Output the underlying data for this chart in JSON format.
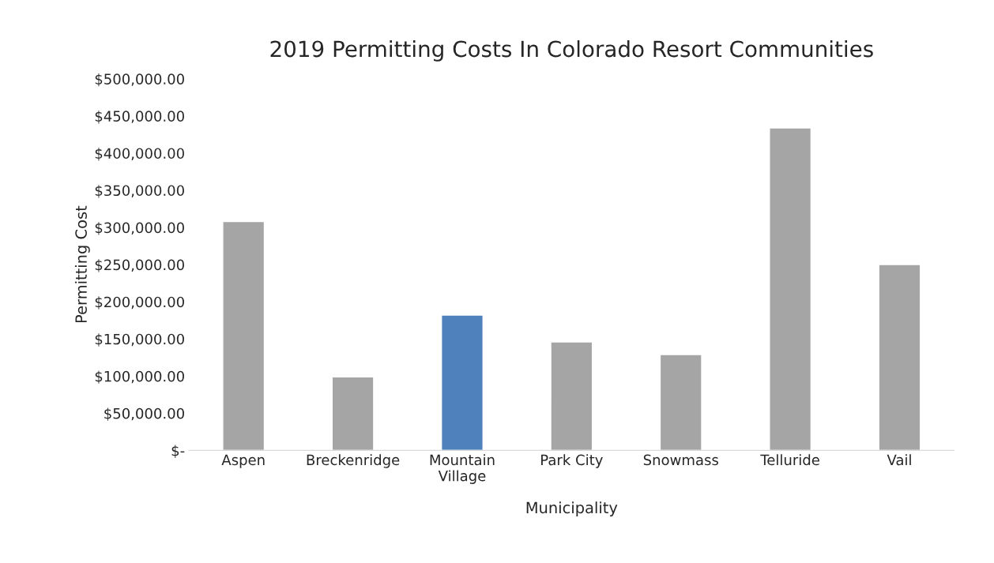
{
  "chart_data": {
    "type": "bar",
    "title": "2019 Permitting Costs In Colorado Resort Communities",
    "xlabel": "Municipality",
    "ylabel": "Permitting Cost",
    "categories": [
      "Aspen",
      "Breckenridge",
      "Mountain\nVillage",
      "Park City",
      "Snowmass",
      "Telluride",
      "Vail"
    ],
    "values": [
      308000,
      99000,
      182000,
      146000,
      129000,
      434000,
      250000
    ],
    "colors": [
      "#a5a5a5",
      "#a5a5a5",
      "#4f81bd",
      "#a5a5a5",
      "#a5a5a5",
      "#a5a5a5",
      "#a5a5a5"
    ],
    "ylim": [
      0,
      500000
    ],
    "yticks": [
      {
        "value": 0,
        "label": "$-"
      },
      {
        "value": 50000,
        "label": "$50,000.00"
      },
      {
        "value": 100000,
        "label": "$100,000.00"
      },
      {
        "value": 150000,
        "label": "$150,000.00"
      },
      {
        "value": 200000,
        "label": "$200,000.00"
      },
      {
        "value": 250000,
        "label": "$250,000.00"
      },
      {
        "value": 300000,
        "label": "$300,000.00"
      },
      {
        "value": 350000,
        "label": "$350,000.00"
      },
      {
        "value": 400000,
        "label": "$400,000.00"
      },
      {
        "value": 450000,
        "label": "$450,000.00"
      },
      {
        "value": 500000,
        "label": "$500,000.00"
      }
    ],
    "grid": false,
    "legend": false
  }
}
